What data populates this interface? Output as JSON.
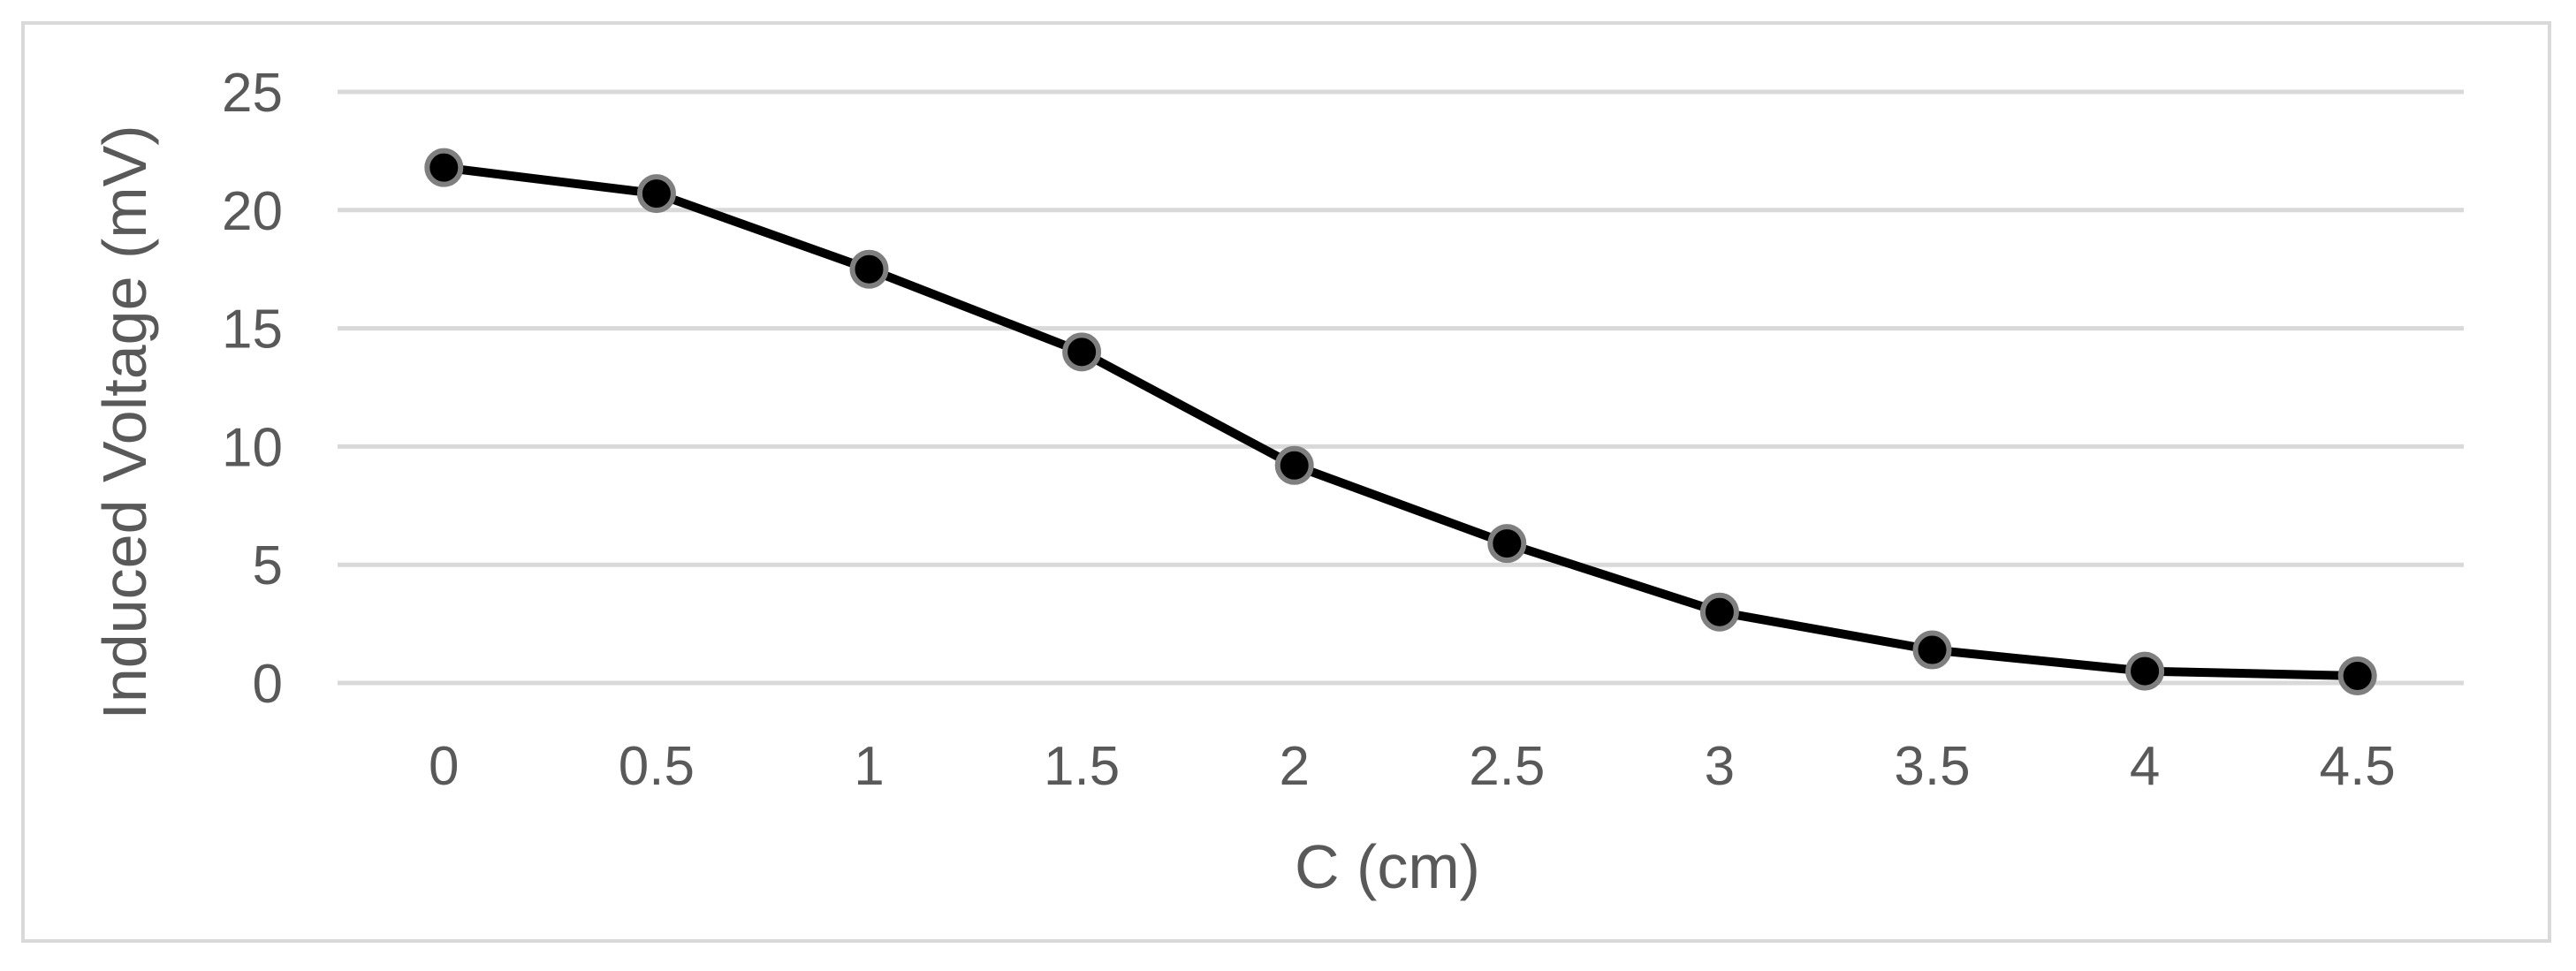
{
  "chart_data": {
    "type": "line",
    "title": "",
    "xlabel": "C (cm)",
    "ylabel": "Induced Voltage  (mV)",
    "categories": [
      "0",
      "0.5",
      "1",
      "1.5",
      "2",
      "2.5",
      "3",
      "3.5",
      "4",
      "4.5"
    ],
    "y_ticks": [
      "0",
      "5",
      "10",
      "15",
      "20",
      "25"
    ],
    "ylim": [
      0,
      25
    ],
    "grid": true,
    "legend": "none",
    "series": [
      {
        "values": [
          21.8,
          20.7,
          17.5,
          14.0,
          9.2,
          5.9,
          3.0,
          1.4,
          0.5,
          0.3
        ],
        "line_color": "#000000",
        "marker_fill": "#000000",
        "marker_edge": "#7f7f7f"
      }
    ],
    "colors": {
      "gridline": "#d9d9d9",
      "text": "#595959",
      "frame": "#d9d9d9"
    }
  }
}
